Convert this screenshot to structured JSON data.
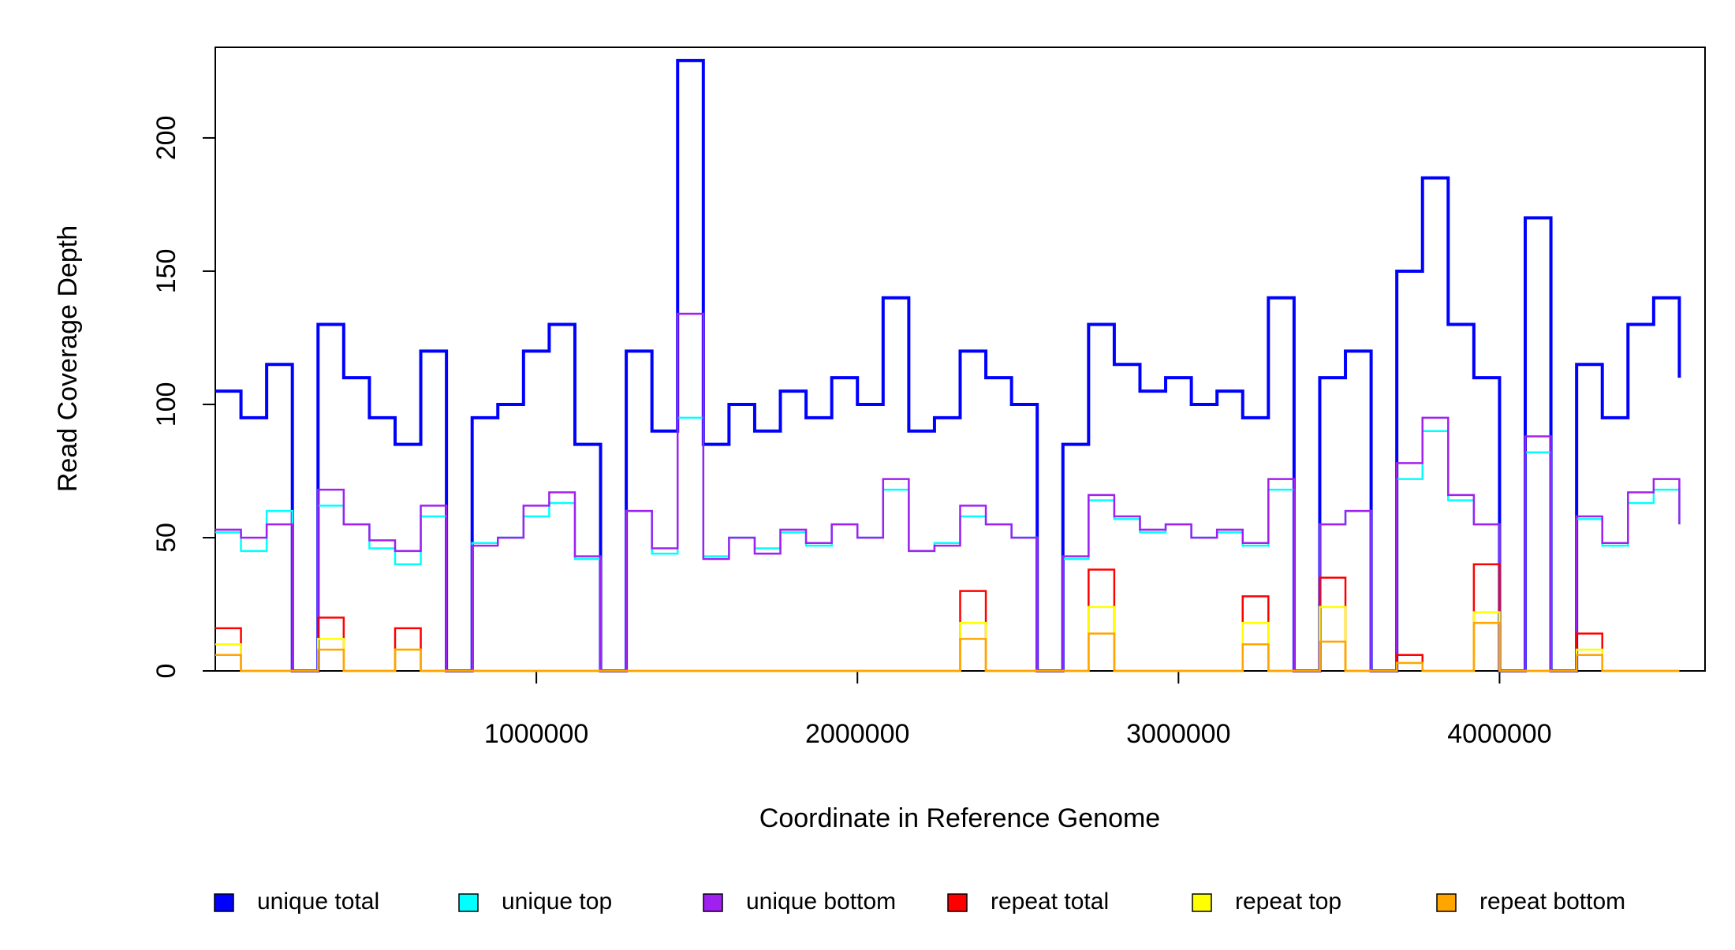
{
  "chart_data": {
    "type": "line",
    "step": true,
    "x_label": "Coordinate in Reference Genome",
    "y_label": "Read Coverage Depth",
    "x": [
      0,
      80000,
      160000,
      240000,
      320000,
      400000,
      480000,
      560000,
      640000,
      720000,
      800000,
      880000,
      960000,
      1040000,
      1120000,
      1200000,
      1280000,
      1360000,
      1440000,
      1520000,
      1600000,
      1680000,
      1760000,
      1840000,
      1920000,
      2000000,
      2080000,
      2160000,
      2240000,
      2320000,
      2400000,
      2480000,
      2560000,
      2640000,
      2720000,
      2800000,
      2880000,
      2960000,
      3040000,
      3120000,
      3200000,
      3280000,
      3360000,
      3440000,
      3520000,
      3600000,
      3680000,
      3760000,
      3840000,
      3920000,
      4000000,
      4080000,
      4160000,
      4240000,
      4320000,
      4400000,
      4480000,
      4560000
    ],
    "series": [
      {
        "name": "unique total",
        "color": "#0000ff",
        "values": [
          105,
          95,
          115,
          0,
          130,
          110,
          95,
          85,
          120,
          0,
          95,
          100,
          120,
          130,
          85,
          0,
          120,
          90,
          229,
          85,
          100,
          90,
          105,
          95,
          110,
          100,
          140,
          90,
          95,
          120,
          110,
          100,
          0,
          85,
          130,
          115,
          105,
          110,
          100,
          105,
          95,
          140,
          0,
          110,
          120,
          0,
          150,
          185,
          130,
          110,
          0,
          170,
          0,
          115,
          95,
          130,
          140,
          110
        ]
      },
      {
        "name": "unique top",
        "color": "#00ffff",
        "values": [
          52,
          45,
          60,
          0,
          62,
          55,
          46,
          40,
          58,
          0,
          48,
          50,
          58,
          63,
          42,
          0,
          60,
          44,
          95,
          43,
          50,
          46,
          52,
          47,
          55,
          50,
          68,
          45,
          48,
          58,
          55,
          50,
          0,
          42,
          64,
          57,
          52,
          55,
          50,
          52,
          47,
          68,
          0,
          55,
          60,
          0,
          72,
          90,
          64,
          55,
          0,
          82,
          0,
          57,
          47,
          63,
          68,
          55
        ]
      },
      {
        "name": "unique bottom",
        "color": "#a020f0",
        "values": [
          53,
          50,
          55,
          0,
          68,
          55,
          49,
          45,
          62,
          0,
          47,
          50,
          62,
          67,
          43,
          0,
          60,
          46,
          134,
          42,
          50,
          44,
          53,
          48,
          55,
          50,
          72,
          45,
          47,
          62,
          55,
          50,
          0,
          43,
          66,
          58,
          53,
          55,
          50,
          53,
          48,
          72,
          0,
          55,
          60,
          0,
          78,
          95,
          66,
          55,
          0,
          88,
          0,
          58,
          48,
          67,
          72,
          55
        ]
      },
      {
        "name": "repeat total",
        "color": "#ff0000",
        "values": [
          16,
          0,
          0,
          0,
          20,
          0,
          0,
          16,
          0,
          0,
          0,
          0,
          0,
          0,
          0,
          0,
          0,
          0,
          0,
          0,
          0,
          0,
          0,
          0,
          0,
          0,
          0,
          0,
          0,
          30,
          0,
          0,
          0,
          0,
          38,
          0,
          0,
          0,
          0,
          0,
          28,
          0,
          0,
          35,
          0,
          0,
          6,
          0,
          0,
          40,
          0,
          0,
          0,
          14,
          0,
          0,
          0,
          0
        ]
      },
      {
        "name": "repeat top",
        "color": "#ffff00",
        "values": [
          10,
          0,
          0,
          0,
          12,
          0,
          0,
          8,
          0,
          0,
          0,
          0,
          0,
          0,
          0,
          0,
          0,
          0,
          0,
          0,
          0,
          0,
          0,
          0,
          0,
          0,
          0,
          0,
          0,
          18,
          0,
          0,
          0,
          0,
          24,
          0,
          0,
          0,
          0,
          0,
          18,
          0,
          0,
          24,
          0,
          0,
          3,
          0,
          0,
          22,
          0,
          0,
          0,
          8,
          0,
          0,
          0,
          0
        ]
      },
      {
        "name": "repeat bottom",
        "color": "#ffa500",
        "values": [
          6,
          0,
          0,
          0,
          8,
          0,
          0,
          8,
          0,
          0,
          0,
          0,
          0,
          0,
          0,
          0,
          0,
          0,
          0,
          0,
          0,
          0,
          0,
          0,
          0,
          0,
          0,
          0,
          0,
          12,
          0,
          0,
          0,
          0,
          14,
          0,
          0,
          0,
          0,
          0,
          10,
          0,
          0,
          11,
          0,
          0,
          3,
          0,
          0,
          18,
          0,
          0,
          0,
          6,
          0,
          0,
          0,
          0
        ]
      }
    ],
    "xlim": [
      0,
      4640000
    ],
    "xticks": [
      1000000,
      2000000,
      3000000,
      4000000
    ],
    "ylim": [
      0,
      234
    ],
    "yticks": [
      0,
      50,
      100,
      150,
      200
    ],
    "grid": false,
    "legend": "bottom"
  }
}
